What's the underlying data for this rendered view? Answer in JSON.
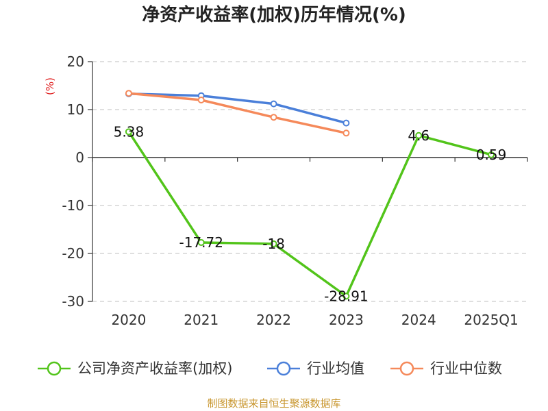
{
  "chart_data": {
    "type": "line",
    "title": "净资产收益率(加权)历年情况(%)",
    "ylabel": "(%)",
    "xlabel": "",
    "categories": [
      "2020",
      "2021",
      "2022",
      "2023",
      "2024",
      "2025Q1"
    ],
    "yticks": [
      20,
      10,
      0,
      -10,
      -20,
      -30
    ],
    "ylim": [
      -30,
      20
    ],
    "grid": true,
    "legend_position": "bottom",
    "series": [
      {
        "name": "公司净资产收益率(加权)",
        "color": "#52c41a",
        "values": [
          5.38,
          -17.72,
          -18,
          -28.91,
          4.6,
          0.59
        ],
        "labels": [
          "5.38",
          "-17.72",
          "-18",
          "-28.91",
          "4.6",
          "0.59"
        ]
      },
      {
        "name": "行业均值",
        "color": "#4a7fd9",
        "values": [
          13.3,
          12.9,
          11.2,
          7.2,
          null,
          null
        ]
      },
      {
        "name": "行业中位数",
        "color": "#f5895a",
        "values": [
          13.4,
          12.0,
          8.4,
          5.1,
          null,
          null
        ]
      }
    ],
    "source": "制图数据来自恒生聚源数据库"
  }
}
